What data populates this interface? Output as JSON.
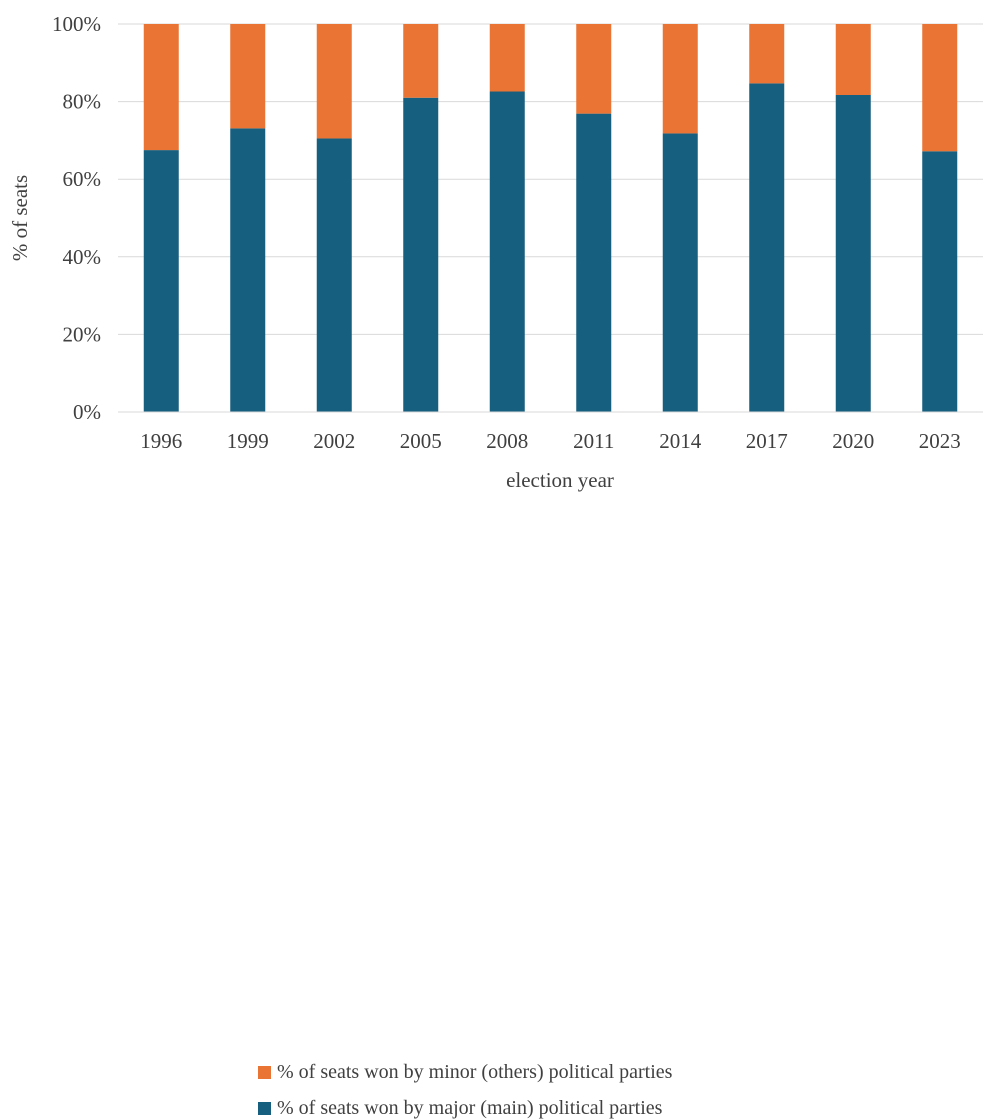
{
  "colors": {
    "major": "#165f7e",
    "minor": "#e97434",
    "grid": "#d9d9d9",
    "text": "#404040"
  },
  "chart_data": {
    "type": "bar",
    "stacked": true,
    "percent": true,
    "categories": [
      "1996",
      "1999",
      "2002",
      "2005",
      "2008",
      "2011",
      "2014",
      "2017",
      "2020",
      "2023"
    ],
    "series": [
      {
        "name": "% of seats won by major (main) political parties",
        "color": "#165f7e",
        "values": [
          67.5,
          73.1,
          70.5,
          81.0,
          82.6,
          76.9,
          71.8,
          84.7,
          81.7,
          67.2
        ]
      },
      {
        "name": "% of seats won by minor (others) political parties",
        "color": "#e97434",
        "values": [
          32.5,
          26.9,
          29.5,
          19.0,
          17.4,
          23.1,
          28.2,
          15.3,
          18.3,
          32.8
        ]
      }
    ],
    "xlabel": "election year",
    "ylabel": "% of seats",
    "ylim": [
      0,
      100
    ],
    "yticks": [
      "0%",
      "20%",
      "40%",
      "60%",
      "80%",
      "100%"
    ],
    "grid": true,
    "legend_position": "bottom"
  },
  "legend": {
    "minor_label": "% of seats won by minor (others) political parties",
    "major_label": "% of seats won by major (main) political parties"
  }
}
